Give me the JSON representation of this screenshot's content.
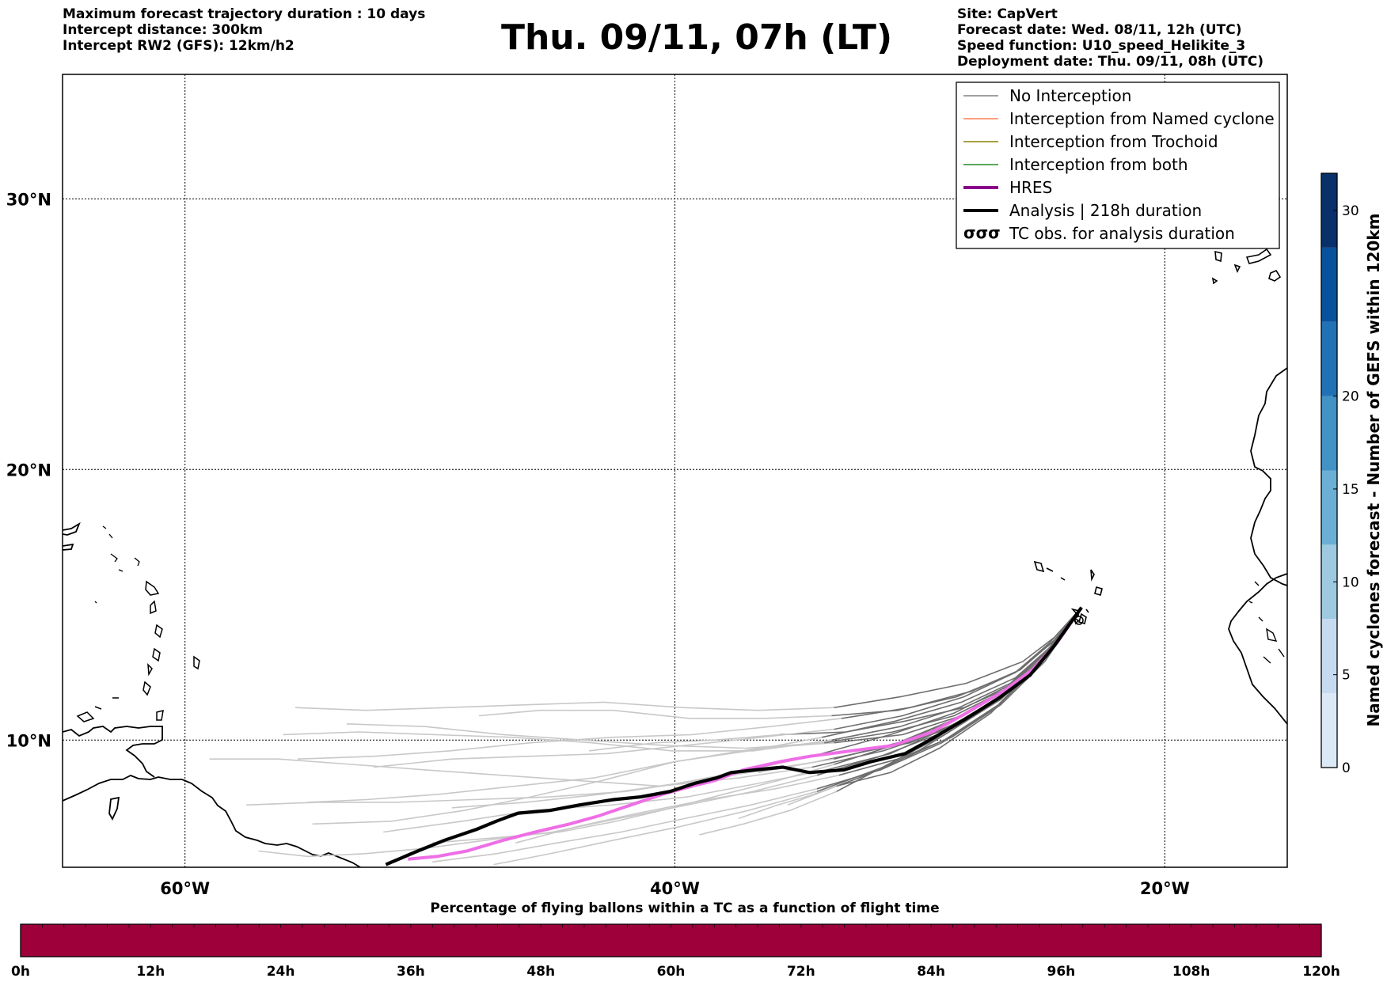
{
  "header": {
    "left_lines": [
      "Maximum forecast trajectory duration : 10 days",
      "Intercept distance: 300km",
      "Intercept RW2 (GFS):  12km/h2"
    ],
    "title": "Thu. 09/11, 07h (LT)",
    "right_lines": [
      "Site: CapVert",
      "Forecast date: Wed. 08/11, 12h (UTC)",
      "Speed function: U10_speed_Helikite_3",
      "Deployment date: Thu. 09/11, 08h (UTC)"
    ]
  },
  "map": {
    "lat_labels": [
      "30°N",
      "20°N",
      "10°N"
    ],
    "lon_labels": [
      "60°W",
      "40°W",
      "20°W"
    ],
    "lon_range": [
      -65,
      -15
    ],
    "lat_range": [
      5.3,
      34.6
    ],
    "launch_point": {
      "lon": -23.4,
      "lat": 14.9
    }
  },
  "legend": {
    "items": [
      {
        "label": "No Interception",
        "color": "#808080",
        "style": "line-thin"
      },
      {
        "label": "Interception from Named cyclone",
        "color": "#ff7f50",
        "style": "line-thin"
      },
      {
        "label": "Interception from Trochoid",
        "color": "#8b8000",
        "style": "line-thin"
      },
      {
        "label": "Interception from both",
        "color": "#228b22",
        "style": "line-thin"
      },
      {
        "label": "HRES",
        "color": "#8b008b",
        "style": "line-thick"
      },
      {
        "label": "Analysis | 218h duration",
        "color": "#000000",
        "style": "line-thick"
      },
      {
        "label": "TC obs. for analysis duration",
        "color": "#000000",
        "style": "cyclone-symbols"
      }
    ]
  },
  "colorbar_right": {
    "label": "Named cyclones forecast - Number of GEFS within 120km",
    "ticks": [
      "0",
      "5",
      "10",
      "15",
      "20",
      "30"
    ],
    "tick_values": [
      0,
      5,
      10,
      15,
      20,
      30
    ],
    "range": [
      0,
      32
    ],
    "colors": [
      "#dbe9f6",
      "#c6dbef",
      "#9ecae1",
      "#6baed6",
      "#4292c6",
      "#2171b5",
      "#08519c",
      "#08306b"
    ]
  },
  "colorbar_bottom": {
    "label": "Percentage of flying ballons within a TC as a function of flight time",
    "ticks": [
      "0h",
      "12h",
      "24h",
      "36h",
      "48h",
      "60h",
      "72h",
      "84h",
      "96h",
      "108h",
      "120h"
    ],
    "fill_color": "#9e003a"
  },
  "chart_data": {
    "type": "line",
    "title": "Thu. 09/11, 07h (LT)",
    "xlabel": "",
    "ylabel": "",
    "series": [
      {
        "name": "Analysis | 218h duration",
        "color": "#000000",
        "points": [
          [
            -23.4,
            14.9
          ],
          [
            -24.5,
            13.5
          ],
          [
            -25.5,
            12.4
          ],
          [
            -26.7,
            11.6
          ],
          [
            -28.1,
            10.8
          ],
          [
            -29.4,
            10.1
          ],
          [
            -30.6,
            9.5
          ],
          [
            -32.0,
            9.2
          ],
          [
            -33.1,
            8.9
          ],
          [
            -34.5,
            8.8
          ],
          [
            -35.6,
            9.0
          ],
          [
            -36.7,
            8.9
          ],
          [
            -37.7,
            8.8
          ],
          [
            -38.3,
            8.6
          ],
          [
            -39.2,
            8.4
          ],
          [
            -40.2,
            8.1
          ],
          [
            -41.4,
            7.9
          ],
          [
            -42.5,
            7.8
          ],
          [
            -43.9,
            7.6
          ],
          [
            -45.1,
            7.4
          ],
          [
            -46.4,
            7.3
          ],
          [
            -47.3,
            7.0
          ],
          [
            -48.1,
            6.7
          ],
          [
            -49.4,
            6.3
          ],
          [
            -50.5,
            5.9
          ],
          [
            -51.8,
            5.4
          ]
        ]
      },
      {
        "name": "HRES",
        "color": "#ee6ee6",
        "points": [
          [
            -23.4,
            14.9
          ],
          [
            -24.4,
            13.6
          ],
          [
            -25.4,
            12.6
          ],
          [
            -26.6,
            11.8
          ],
          [
            -28.1,
            11.0
          ],
          [
            -29.5,
            10.3
          ],
          [
            -31.1,
            9.8
          ],
          [
            -32.8,
            9.6
          ],
          [
            -34.5,
            9.4
          ],
          [
            -35.7,
            9.2
          ],
          [
            -37.2,
            8.9
          ],
          [
            -38.4,
            8.5
          ],
          [
            -39.3,
            8.3
          ],
          [
            -40.5,
            8.0
          ],
          [
            -41.8,
            7.6
          ],
          [
            -43.1,
            7.2
          ],
          [
            -44.3,
            6.9
          ],
          [
            -45.7,
            6.6
          ],
          [
            -47.0,
            6.3
          ],
          [
            -48.5,
            5.9
          ],
          [
            -49.7,
            5.7
          ],
          [
            -50.9,
            5.6
          ]
        ]
      }
    ],
    "ensemble_members": [
      [
        [
          -23.4,
          14.9
        ],
        [
          -24.8,
          13.2
        ],
        [
          -26.5,
          11.7
        ],
        [
          -28.6,
          10.6
        ],
        [
          -30.4,
          9.9
        ],
        [
          -32.1,
          9.6
        ],
        [
          -34.2,
          9.2
        ],
        [
          -36.6,
          8.8
        ]
      ],
      [
        [
          -23.4,
          14.9
        ],
        [
          -25.0,
          13.0
        ],
        [
          -26.9,
          11.4
        ],
        [
          -28.8,
          10.3
        ],
        [
          -30.6,
          9.3
        ],
        [
          -32.5,
          8.6
        ],
        [
          -34.3,
          8.0
        ],
        [
          -35.8,
          7.6
        ],
        [
          -37.4,
          7.1
        ]
      ],
      [
        [
          -23.4,
          14.9
        ],
        [
          -24.6,
          13.4
        ],
        [
          -26.2,
          12.0
        ],
        [
          -28.2,
          11.2
        ],
        [
          -30.6,
          10.7
        ],
        [
          -33.0,
          10.3
        ],
        [
          -35.7,
          10.2
        ],
        [
          -38.4,
          10.0
        ],
        [
          -40.8,
          9.9
        ],
        [
          -43.5,
          9.6
        ]
      ],
      [
        [
          -23.4,
          14.9
        ],
        [
          -24.7,
          13.6
        ],
        [
          -26.1,
          12.5
        ],
        [
          -28.5,
          11.6
        ],
        [
          -30.9,
          11.1
        ],
        [
          -33.6,
          10.9
        ],
        [
          -36.4,
          10.8
        ],
        [
          -39.4,
          10.8
        ],
        [
          -42.5,
          11.1
        ],
        [
          -45.5,
          11.1
        ],
        [
          -48.0,
          10.9
        ]
      ],
      [
        [
          -23.4,
          14.9
        ],
        [
          -24.9,
          13.1
        ],
        [
          -26.7,
          11.5
        ],
        [
          -29.0,
          10.2
        ],
        [
          -31.3,
          9.1
        ],
        [
          -33.4,
          8.1
        ],
        [
          -35.3,
          7.4
        ],
        [
          -37.2,
          6.9
        ],
        [
          -39.0,
          6.5
        ]
      ],
      [
        [
          -23.4,
          14.9
        ],
        [
          -25.1,
          12.8
        ],
        [
          -27.1,
          11.0
        ],
        [
          -29.2,
          9.7
        ],
        [
          -31.2,
          8.8
        ],
        [
          -33.4,
          8.3
        ],
        [
          -35.4,
          7.6
        ]
      ],
      [
        [
          -23.4,
          14.9
        ],
        [
          -24.5,
          13.8
        ],
        [
          -25.8,
          12.9
        ],
        [
          -28.1,
          12.1
        ],
        [
          -30.8,
          11.6
        ],
        [
          -33.5,
          11.2
        ],
        [
          -36.6,
          11.1
        ],
        [
          -39.7,
          11.2
        ],
        [
          -42.9,
          11.4
        ],
        [
          -46.2,
          11.3
        ],
        [
          -49.3,
          11.2
        ],
        [
          -52.6,
          11.1
        ],
        [
          -55.5,
          11.2
        ]
      ],
      [
        [
          -23.4,
          14.9
        ],
        [
          -24.7,
          13.3
        ],
        [
          -26.3,
          11.9
        ],
        [
          -28.3,
          10.9
        ],
        [
          -30.7,
          10.2
        ],
        [
          -33.5,
          9.9
        ],
        [
          -36.6,
          9.7
        ],
        [
          -40.0,
          9.2
        ],
        [
          -43.0,
          8.5
        ],
        [
          -45.9,
          7.9
        ],
        [
          -48.6,
          7.4
        ],
        [
          -51.6,
          7.0
        ],
        [
          -54.8,
          6.9
        ]
      ],
      [
        [
          -23.4,
          14.9
        ],
        [
          -24.9,
          12.9
        ],
        [
          -26.7,
          11.3
        ],
        [
          -28.7,
          10.1
        ],
        [
          -30.9,
          9.3
        ],
        [
          -33.3,
          8.7
        ],
        [
          -35.9,
          8.2
        ],
        [
          -38.7,
          7.8
        ],
        [
          -41.5,
          7.3
        ],
        [
          -44.0,
          6.8
        ],
        [
          -46.5,
          6.2
        ]
      ],
      [
        [
          -23.4,
          14.9
        ],
        [
          -24.6,
          13.5
        ],
        [
          -26.1,
          12.3
        ],
        [
          -28.3,
          11.4
        ],
        [
          -31.0,
          10.7
        ],
        [
          -34.0,
          10.1
        ],
        [
          -37.0,
          9.6
        ],
        [
          -40.0,
          9.2
        ],
        [
          -43.3,
          8.6
        ],
        [
          -46.5,
          8.3
        ],
        [
          -49.6,
          8.0
        ],
        [
          -52.6,
          7.8
        ],
        [
          -55.0,
          7.7
        ]
      ],
      [
        [
          -23.4,
          14.9
        ],
        [
          -24.8,
          13.2
        ],
        [
          -26.6,
          11.6
        ],
        [
          -28.8,
          10.5
        ],
        [
          -31.2,
          9.5
        ],
        [
          -33.8,
          8.9
        ],
        [
          -36.6,
          8.4
        ],
        [
          -39.5,
          7.9
        ],
        [
          -42.6,
          7.6
        ],
        [
          -45.8,
          7.4
        ],
        [
          -48.7,
          7.0
        ],
        [
          -51.9,
          6.6
        ]
      ],
      [
        [
          -23.4,
          14.9
        ],
        [
          -24.7,
          13.4
        ],
        [
          -26.3,
          12.1
        ],
        [
          -28.4,
          11.2
        ],
        [
          -30.8,
          10.5
        ],
        [
          -33.6,
          10.0
        ],
        [
          -36.8,
          9.6
        ],
        [
          -40.1,
          9.6
        ],
        [
          -43.4,
          9.9
        ],
        [
          -46.6,
          10.1
        ],
        [
          -49.8,
          10.2
        ],
        [
          -52.9,
          10.3
        ],
        [
          -56.0,
          10.2
        ]
      ],
      [
        [
          -23.4,
          14.9
        ],
        [
          -24.8,
          13.3
        ],
        [
          -26.4,
          11.9
        ],
        [
          -28.5,
          10.8
        ],
        [
          -30.9,
          9.9
        ],
        [
          -33.5,
          9.3
        ],
        [
          -36.3,
          8.9
        ],
        [
          -39.1,
          8.5
        ],
        [
          -42.0,
          8.1
        ],
        [
          -45.1,
          7.9
        ],
        [
          -48.2,
          7.8
        ],
        [
          -51.4,
          7.7
        ],
        [
          -54.6,
          7.7
        ],
        [
          -57.5,
          7.6
        ]
      ],
      [
        [
          -23.4,
          14.9
        ],
        [
          -25.0,
          13.0
        ],
        [
          -26.8,
          11.3
        ],
        [
          -29.0,
          10.0
        ],
        [
          -31.5,
          9.0
        ],
        [
          -34.2,
          8.1
        ],
        [
          -37.0,
          7.4
        ],
        [
          -39.8,
          6.8
        ],
        [
          -42.5,
          6.3
        ],
        [
          -45.1,
          5.8
        ],
        [
          -47.4,
          5.4
        ]
      ],
      [
        [
          -23.4,
          14.9
        ],
        [
          -24.9,
          13.1
        ],
        [
          -26.6,
          11.6
        ],
        [
          -28.9,
          10.4
        ],
        [
          -31.5,
          9.6
        ],
        [
          -34.4,
          9.0
        ],
        [
          -37.4,
          8.6
        ],
        [
          -40.6,
          8.3
        ],
        [
          -43.9,
          8.5
        ],
        [
          -47.1,
          8.7
        ],
        [
          -50.2,
          8.9
        ],
        [
          -53.2,
          9.1
        ],
        [
          -56.2,
          9.3
        ],
        [
          -59.0,
          9.3
        ]
      ],
      [
        [
          -23.4,
          14.9
        ],
        [
          -24.6,
          13.6
        ],
        [
          -26.1,
          12.5
        ],
        [
          -28.2,
          11.6
        ],
        [
          -30.7,
          10.9
        ],
        [
          -33.5,
          10.4
        ],
        [
          -36.5,
          10.1
        ],
        [
          -39.6,
          9.8
        ],
        [
          -42.8,
          9.5
        ],
        [
          -46.0,
          9.4
        ],
        [
          -49.1,
          9.3
        ],
        [
          -52.3,
          9.0
        ]
      ],
      [
        [
          -23.4,
          14.9
        ],
        [
          -24.9,
          13.2
        ],
        [
          -26.6,
          11.8
        ],
        [
          -28.6,
          10.9
        ],
        [
          -31.1,
          10.3
        ],
        [
          -33.9,
          9.9
        ],
        [
          -37.1,
          9.7
        ],
        [
          -40.4,
          9.8
        ],
        [
          -43.7,
          10.0
        ],
        [
          -47.0,
          10.2
        ],
        [
          -50.2,
          10.5
        ],
        [
          -53.4,
          10.6
        ]
      ],
      [
        [
          -23.4,
          14.9
        ],
        [
          -25.0,
          12.9
        ],
        [
          -26.9,
          11.2
        ],
        [
          -29.1,
          9.9
        ],
        [
          -31.6,
          8.9
        ],
        [
          -34.2,
          8.2
        ],
        [
          -36.9,
          7.6
        ],
        [
          -39.6,
          7.1
        ],
        [
          -42.2,
          6.6
        ],
        [
          -44.8,
          6.2
        ],
        [
          -47.3,
          5.8
        ],
        [
          -49.9,
          5.5
        ]
      ],
      [
        [
          -23.4,
          14.9
        ],
        [
          -24.7,
          13.4
        ],
        [
          -26.4,
          12.0
        ],
        [
          -28.6,
          11.0
        ],
        [
          -31.2,
          10.2
        ],
        [
          -34.0,
          9.5
        ],
        [
          -36.9,
          8.9
        ],
        [
          -39.9,
          8.4
        ],
        [
          -43.0,
          8.0
        ],
        [
          -46.1,
          7.7
        ],
        [
          -49.1,
          7.5
        ]
      ],
      [
        [
          -23.4,
          14.9
        ],
        [
          -24.5,
          13.7
        ],
        [
          -25.9,
          12.6
        ],
        [
          -27.9,
          11.8
        ],
        [
          -30.4,
          11.2
        ],
        [
          -33.2,
          10.8
        ],
        [
          -36.1,
          10.5
        ],
        [
          -39.3,
          10.2
        ],
        [
          -42.6,
          10.1
        ],
        [
          -45.9,
          9.9
        ],
        [
          -49.2,
          9.6
        ],
        [
          -52.3,
          9.4
        ],
        [
          -55.4,
          9.3
        ]
      ],
      [
        [
          -23.4,
          14.9
        ],
        [
          -24.8,
          13.3
        ],
        [
          -26.5,
          11.8
        ],
        [
          -28.7,
          10.7
        ],
        [
          -31.1,
          9.8
        ],
        [
          -33.5,
          9.1
        ],
        [
          -35.8,
          8.5
        ],
        [
          -38.0,
          8.0
        ],
        [
          -40.1,
          7.5
        ],
        [
          -42.4,
          7.0
        ],
        [
          -44.7,
          6.6
        ],
        [
          -47.2,
          6.4
        ],
        [
          -49.9,
          6.2
        ]
      ],
      [
        [
          -23.4,
          14.9
        ],
        [
          -24.9,
          13.1
        ],
        [
          -26.7,
          11.5
        ],
        [
          -29.0,
          10.3
        ],
        [
          -31.6,
          9.4
        ],
        [
          -34.2,
          8.7
        ],
        [
          -36.8,
          8.1
        ],
        [
          -39.5,
          7.6
        ],
        [
          -42.3,
          7.1
        ],
        [
          -45.0,
          6.6
        ],
        [
          -47.7,
          6.3
        ],
        [
          -50.2,
          6.0
        ],
        [
          -52.7,
          5.8
        ],
        [
          -55.0,
          5.7
        ],
        [
          -57.0,
          5.9
        ]
      ]
    ]
  }
}
